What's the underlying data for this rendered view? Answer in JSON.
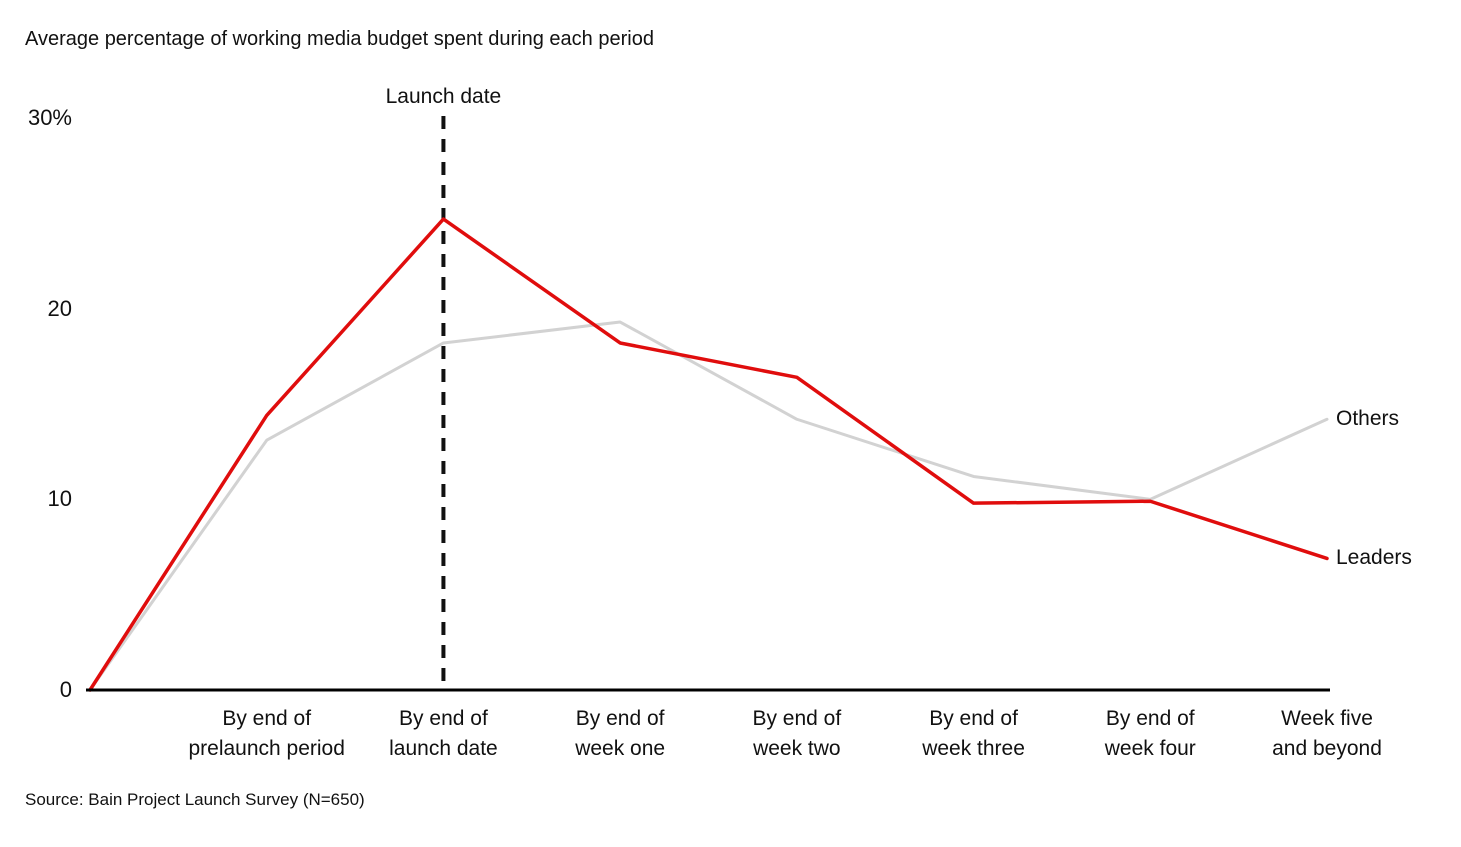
{
  "title": "Average percentage of working media budget spent during each period",
  "source": "Source: Bain Project Launch Survey (N=650)",
  "annotation": {
    "launch_label": "Launch date"
  },
  "colors": {
    "leaders_red": "#e00d0d",
    "others_gray": "#d2d2d2",
    "axis_black": "#000000",
    "text": "#111111"
  },
  "chart_data": {
    "type": "line",
    "title": "Average percentage of working media budget spent during each period",
    "categories": [
      "",
      "By end of\nprelaunch period",
      "By end of\nlaunch date",
      "By end of\nweek one",
      "By end of\nweek two",
      "By end of\nweek three",
      "By end of\nweek four",
      "Week five\nand beyond"
    ],
    "series": [
      {
        "name": "Others",
        "color": "#d2d2d2",
        "values": [
          0,
          13.1,
          18.2,
          19.3,
          14.2,
          11.2,
          10.0,
          14.2
        ]
      },
      {
        "name": "Leaders",
        "color": "#e00d0d",
        "values": [
          0,
          14.4,
          24.7,
          18.2,
          16.4,
          9.8,
          9.9,
          6.9
        ]
      }
    ],
    "ylabel": "",
    "xlabel": "",
    "ylim": [
      0,
      30
    ],
    "y_ticks": [
      {
        "label": "30%",
        "value": 30
      },
      {
        "label": "20",
        "value": 20
      },
      {
        "label": "10",
        "value": 10
      },
      {
        "label": "0",
        "value": 0
      }
    ],
    "grid": false,
    "legend_position": "line-end-labels",
    "annotation": {
      "label": "Launch date",
      "at_category_index": 2,
      "style": "vertical-dashed-line"
    }
  }
}
